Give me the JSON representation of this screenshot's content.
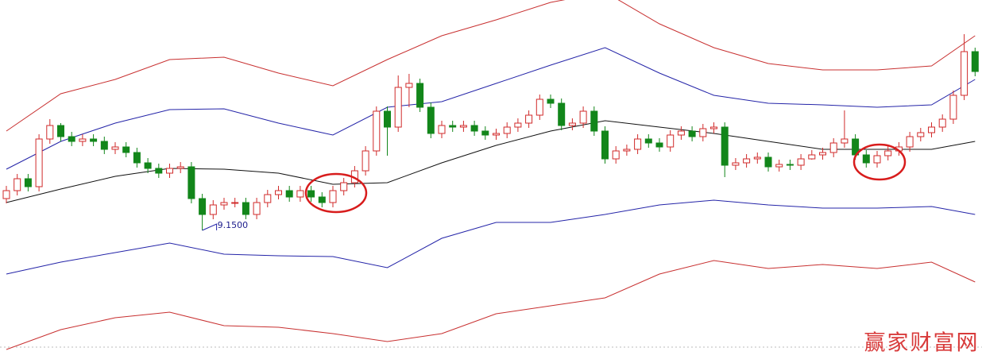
{
  "chart_data": {
    "type": "candlestick",
    "ylim": [
      7.48,
      12.05
    ],
    "up_color": "#d02a2a",
    "down_color": "#12861a",
    "ohlc": {
      "open": [
        9.55,
        9.65,
        9.8,
        9.7,
        10.3,
        10.47,
        10.33,
        10.27,
        10.3,
        10.27,
        10.17,
        10.2,
        10.13,
        10.0,
        9.93,
        9.87,
        9.93,
        9.95,
        9.55,
        9.35,
        9.47,
        9.5,
        9.5,
        9.35,
        9.5,
        9.6,
        9.65,
        9.57,
        9.65,
        9.57,
        9.5,
        9.65,
        9.75,
        9.9,
        10.15,
        10.65,
        10.45,
        10.95,
        11.0,
        10.7,
        10.37,
        10.47,
        10.45,
        10.47,
        10.4,
        10.35,
        10.37,
        10.45,
        10.5,
        10.6,
        10.8,
        10.75,
        10.47,
        10.5,
        10.65,
        10.4,
        10.05,
        10.15,
        10.17,
        10.3,
        10.25,
        10.2,
        10.35,
        10.4,
        10.33,
        10.43,
        10.45,
        9.97,
        10.0,
        10.05,
        10.07,
        9.95,
        9.98,
        9.97,
        10.05,
        10.1,
        10.13,
        10.25,
        10.3,
        10.1,
        10.0,
        10.09,
        10.15,
        10.2,
        10.33,
        10.38,
        10.45,
        10.55,
        10.85,
        11.4
      ],
      "high": [
        9.71,
        9.86,
        9.86,
        10.36,
        10.55,
        10.5,
        10.39,
        10.36,
        10.36,
        10.33,
        10.26,
        10.26,
        10.19,
        10.06,
        9.99,
        9.99,
        10.01,
        10.01,
        9.61,
        9.53,
        9.56,
        9.56,
        9.56,
        9.56,
        9.66,
        9.71,
        9.71,
        9.71,
        9.71,
        9.63,
        9.71,
        9.81,
        9.96,
        10.21,
        10.71,
        10.71,
        11.1,
        11.12,
        11.06,
        10.76,
        10.53,
        10.53,
        10.53,
        10.53,
        10.46,
        10.43,
        10.51,
        10.56,
        10.66,
        10.86,
        10.86,
        10.81,
        10.56,
        10.71,
        10.71,
        10.46,
        10.21,
        10.23,
        10.36,
        10.36,
        10.31,
        10.41,
        10.46,
        10.46,
        10.49,
        10.51,
        10.51,
        10.06,
        10.11,
        10.13,
        10.13,
        10.04,
        10.04,
        10.11,
        10.16,
        10.19,
        10.31,
        10.66,
        10.36,
        10.16,
        10.15,
        10.21,
        10.26,
        10.39,
        10.44,
        10.51,
        10.61,
        10.91,
        11.62,
        11.45
      ],
      "low": [
        9.49,
        9.59,
        9.64,
        9.64,
        10.24,
        10.27,
        10.21,
        10.21,
        10.21,
        10.11,
        10.11,
        10.07,
        9.94,
        9.87,
        9.81,
        9.81,
        9.87,
        9.49,
        9.15,
        9.29,
        9.41,
        9.44,
        9.29,
        9.29,
        9.44,
        9.54,
        9.51,
        9.51,
        9.51,
        9.44,
        9.44,
        9.59,
        9.69,
        9.84,
        10.09,
        10.09,
        10.39,
        10.7,
        10.64,
        10.31,
        10.31,
        10.39,
        10.39,
        10.34,
        10.29,
        10.29,
        10.31,
        10.39,
        10.44,
        10.54,
        10.69,
        10.41,
        10.41,
        10.44,
        10.34,
        9.99,
        9.99,
        10.09,
        10.11,
        10.19,
        10.14,
        10.14,
        10.29,
        10.27,
        10.27,
        10.37,
        9.82,
        9.91,
        9.94,
        9.99,
        9.89,
        9.89,
        9.91,
        9.91,
        10.04,
        10.04,
        10.07,
        10.19,
        10.04,
        9.94,
        9.94,
        10.03,
        10.09,
        10.14,
        10.27,
        10.32,
        10.39,
        10.49,
        10.79,
        11.09
      ],
      "close": [
        9.65,
        9.8,
        9.7,
        10.3,
        10.47,
        10.33,
        10.27,
        10.3,
        10.27,
        10.17,
        10.2,
        10.13,
        10.0,
        9.93,
        9.87,
        9.93,
        9.95,
        9.55,
        9.35,
        9.47,
        9.5,
        9.5,
        9.35,
        9.5,
        9.6,
        9.65,
        9.57,
        9.65,
        9.57,
        9.5,
        9.65,
        9.75,
        9.9,
        10.15,
        10.65,
        10.45,
        10.95,
        11.0,
        10.7,
        10.37,
        10.47,
        10.45,
        10.47,
        10.4,
        10.35,
        10.37,
        10.45,
        10.5,
        10.6,
        10.8,
        10.75,
        10.47,
        10.5,
        10.65,
        10.4,
        10.05,
        10.15,
        10.17,
        10.3,
        10.25,
        10.2,
        10.35,
        10.4,
        10.33,
        10.43,
        10.45,
        9.97,
        10.0,
        10.05,
        10.07,
        9.95,
        9.98,
        9.97,
        10.05,
        10.1,
        10.13,
        10.25,
        10.3,
        10.1,
        10.0,
        10.09,
        10.15,
        10.2,
        10.33,
        10.38,
        10.45,
        10.55,
        10.85,
        11.4,
        11.15
      ]
    },
    "series": [
      {
        "color": "#c83030",
        "x": [
          0,
          5,
          10,
          15,
          20,
          25,
          30,
          35,
          40,
          45,
          50,
          55,
          60,
          65,
          70,
          75,
          80,
          85,
          89
        ],
        "values": [
          10.4,
          10.87,
          11.05,
          11.3,
          11.33,
          11.13,
          10.97,
          11.3,
          11.6,
          11.8,
          12.02,
          12.15,
          11.75,
          11.45,
          11.25,
          11.17,
          11.17,
          11.22,
          11.6
        ]
      },
      {
        "color": "#2424a8",
        "x": [
          0,
          5,
          10,
          15,
          20,
          25,
          30,
          35,
          40,
          45,
          50,
          55,
          60,
          65,
          70,
          75,
          80,
          85,
          89
        ],
        "values": [
          9.92,
          10.27,
          10.5,
          10.67,
          10.68,
          10.5,
          10.35,
          10.7,
          10.77,
          11.0,
          11.23,
          11.45,
          11.13,
          10.85,
          10.75,
          10.73,
          10.7,
          10.73,
          11.05
        ]
      },
      {
        "color": "#111111",
        "x": [
          0,
          5,
          10,
          15,
          20,
          25,
          30,
          35,
          40,
          45,
          50,
          55,
          60,
          65,
          70,
          75,
          80,
          85,
          89
        ],
        "values": [
          9.5,
          9.67,
          9.83,
          9.93,
          9.92,
          9.87,
          9.73,
          9.75,
          10.0,
          10.22,
          10.4,
          10.53,
          10.45,
          10.37,
          10.27,
          10.17,
          10.17,
          10.17,
          10.27
        ]
      },
      {
        "color": "#2424a8",
        "x": [
          0,
          5,
          10,
          15,
          20,
          25,
          30,
          35,
          40,
          45,
          50,
          55,
          60,
          65,
          70,
          75,
          80,
          85,
          89
        ],
        "values": [
          8.6,
          8.75,
          8.87,
          8.99,
          8.85,
          8.83,
          8.82,
          8.68,
          9.05,
          9.25,
          9.25,
          9.35,
          9.47,
          9.53,
          9.47,
          9.43,
          9.43,
          9.45,
          9.35
        ]
      },
      {
        "color": "#c83030",
        "x": [
          0,
          5,
          10,
          15,
          20,
          25,
          30,
          35,
          40,
          45,
          50,
          55,
          60,
          65,
          70,
          75,
          80,
          85,
          89
        ],
        "values": [
          7.65,
          7.9,
          8.05,
          8.12,
          7.95,
          7.93,
          7.85,
          7.75,
          7.85,
          8.1,
          8.2,
          8.3,
          8.6,
          8.77,
          8.67,
          8.72,
          8.67,
          8.75,
          8.5
        ]
      }
    ],
    "annotation": {
      "value": 9.15,
      "label": "9.1500"
    }
  },
  "watermark": "赢家财富网"
}
